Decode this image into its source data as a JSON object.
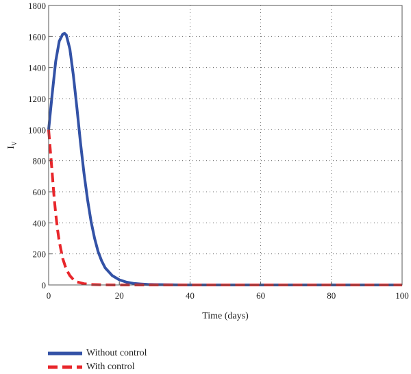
{
  "chart_data": {
    "type": "line",
    "xlabel": "Time (days)",
    "ylabel": "I",
    "ylabel_sub": "V",
    "xlim": [
      0,
      100
    ],
    "ylim": [
      0,
      1800
    ],
    "xticks": [
      "0",
      "20",
      "40",
      "60",
      "80",
      "100"
    ],
    "yticks": [
      "0",
      "200",
      "400",
      "600",
      "800",
      "1000",
      "1200",
      "1400",
      "1600",
      "1800"
    ],
    "grid": true,
    "legend_position": "bottom-left",
    "series": [
      {
        "name": "Without control",
        "color": "#3352a6",
        "style": "solid",
        "x": [
          0,
          1,
          2,
          3,
          4,
          4.5,
          5,
          6,
          7,
          8,
          9,
          10,
          11,
          12,
          13,
          14,
          15,
          16,
          18,
          20,
          22,
          24,
          26,
          28,
          30,
          35,
          40,
          50,
          60,
          70,
          80,
          90,
          100
        ],
        "y": [
          1000,
          1230,
          1440,
          1570,
          1615,
          1620,
          1610,
          1520,
          1350,
          1140,
          920,
          720,
          550,
          410,
          300,
          215,
          155,
          110,
          60,
          33,
          18,
          10,
          6,
          3,
          2,
          1,
          0,
          0,
          0,
          0,
          0,
          0,
          0
        ]
      },
      {
        "name": "With control",
        "color": "#e8262b",
        "style": "dashed",
        "x": [
          0,
          0.5,
          1,
          1.5,
          2,
          2.5,
          3,
          4,
          5,
          6,
          7,
          8,
          10,
          12,
          15,
          20,
          30,
          40,
          50,
          60,
          70,
          80,
          90,
          100
        ],
        "y": [
          1000,
          860,
          720,
          580,
          460,
          360,
          280,
          170,
          100,
          60,
          35,
          20,
          8,
          3,
          1,
          0,
          0,
          0,
          0,
          0,
          0,
          0,
          0,
          0
        ]
      }
    ]
  }
}
